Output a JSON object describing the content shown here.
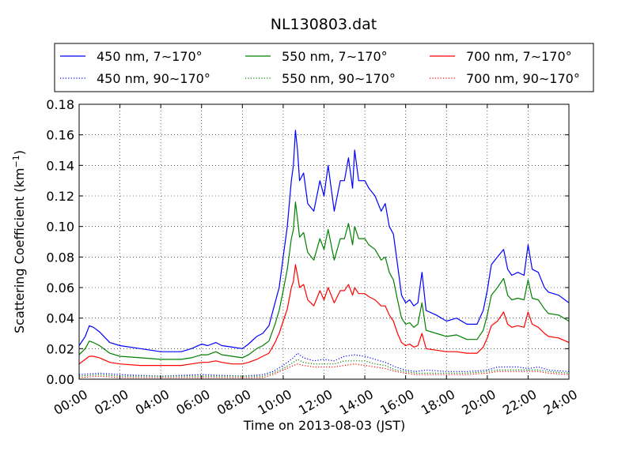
{
  "chart_data": {
    "type": "line",
    "title": "NL130803.dat",
    "xlabel": "Time on 2013-08-03 (JST)",
    "ylabel_main": "Scattering Coefficient (km",
    "ylabel_sup": "−1",
    "ylabel_end": ")",
    "xlim_hours": [
      0,
      24
    ],
    "ylim": [
      0,
      0.18
    ],
    "grid": true,
    "grid_style": "dotted",
    "legend_placement": "top",
    "x_ticks": [
      {
        "hour": 0,
        "label": "00:00"
      },
      {
        "hour": 2,
        "label": "02:00"
      },
      {
        "hour": 4,
        "label": "04:00"
      },
      {
        "hour": 6,
        "label": "06:00"
      },
      {
        "hour": 8,
        "label": "08:00"
      },
      {
        "hour": 10,
        "label": "10:00"
      },
      {
        "hour": 12,
        "label": "12:00"
      },
      {
        "hour": 14,
        "label": "14:00"
      },
      {
        "hour": 16,
        "label": "16:00"
      },
      {
        "hour": 18,
        "label": "18:00"
      },
      {
        "hour": 20,
        "label": "20:00"
      },
      {
        "hour": 22,
        "label": "22:00"
      },
      {
        "hour": 24,
        "label": "24:00"
      }
    ],
    "y_ticks": [
      {
        "value": 0.0,
        "label": "0.00"
      },
      {
        "value": 0.02,
        "label": "0.02"
      },
      {
        "value": 0.04,
        "label": "0.04"
      },
      {
        "value": 0.06,
        "label": "0.06"
      },
      {
        "value": 0.08,
        "label": "0.08"
      },
      {
        "value": 0.1,
        "label": "0.10"
      },
      {
        "value": 0.12,
        "label": "0.12"
      },
      {
        "value": 0.14,
        "label": "0.14"
      },
      {
        "value": 0.16,
        "label": "0.16"
      },
      {
        "value": 0.18,
        "label": "0.18"
      }
    ],
    "series": [
      {
        "name": "450 nm, 7∼170°",
        "color": "#0000ff",
        "style": "solid",
        "x": [
          0,
          0.3,
          0.5,
          0.7,
          1,
          1.5,
          2,
          3,
          4,
          5,
          5.5,
          6,
          6.3,
          6.7,
          7,
          7.5,
          8,
          8.3,
          8.7,
          9,
          9.3,
          9.6,
          9.8,
          10,
          10.2,
          10.4,
          10.5,
          10.6,
          10.7,
          10.8,
          11,
          11.2,
          11.5,
          11.8,
          12,
          12.2,
          12.5,
          12.8,
          13,
          13.2,
          13.4,
          13.5,
          13.7,
          14,
          14.2,
          14.5,
          14.8,
          15,
          15.2,
          15.4,
          15.6,
          15.8,
          16,
          16.2,
          16.4,
          16.6,
          16.8,
          17,
          17.5,
          18,
          18.5,
          19,
          19.5,
          19.8,
          20,
          20.2,
          20.5,
          20.8,
          21,
          21.2,
          21.5,
          21.8,
          22,
          22.2,
          22.5,
          22.8,
          23,
          23.5,
          24
        ],
        "values": [
          0.022,
          0.028,
          0.035,
          0.034,
          0.031,
          0.024,
          0.022,
          0.02,
          0.018,
          0.018,
          0.02,
          0.023,
          0.022,
          0.024,
          0.022,
          0.021,
          0.02,
          0.023,
          0.028,
          0.03,
          0.035,
          0.05,
          0.06,
          0.08,
          0.1,
          0.13,
          0.14,
          0.163,
          0.15,
          0.13,
          0.135,
          0.115,
          0.11,
          0.13,
          0.12,
          0.14,
          0.11,
          0.13,
          0.13,
          0.145,
          0.125,
          0.15,
          0.13,
          0.13,
          0.125,
          0.12,
          0.11,
          0.115,
          0.1,
          0.095,
          0.075,
          0.055,
          0.05,
          0.052,
          0.048,
          0.05,
          0.07,
          0.045,
          0.042,
          0.038,
          0.04,
          0.036,
          0.036,
          0.045,
          0.058,
          0.075,
          0.08,
          0.085,
          0.072,
          0.068,
          0.07,
          0.068,
          0.088,
          0.072,
          0.07,
          0.06,
          0.057,
          0.055,
          0.05
        ]
      },
      {
        "name": "550 nm, 7∼170°",
        "color": "#008000",
        "style": "solid",
        "x": [
          0,
          0.3,
          0.5,
          0.7,
          1,
          1.5,
          2,
          3,
          4,
          5,
          5.5,
          6,
          6.3,
          6.7,
          7,
          7.5,
          8,
          8.3,
          8.7,
          9,
          9.3,
          9.6,
          9.8,
          10,
          10.2,
          10.4,
          10.5,
          10.6,
          10.7,
          10.8,
          11,
          11.2,
          11.5,
          11.8,
          12,
          12.2,
          12.5,
          12.8,
          13,
          13.2,
          13.4,
          13.5,
          13.7,
          14,
          14.2,
          14.5,
          14.8,
          15,
          15.2,
          15.4,
          15.6,
          15.8,
          16,
          16.2,
          16.4,
          16.6,
          16.8,
          17,
          17.5,
          18,
          18.5,
          19,
          19.5,
          19.8,
          20,
          20.2,
          20.5,
          20.8,
          21,
          21.2,
          21.5,
          21.8,
          22,
          22.2,
          22.5,
          22.8,
          23,
          23.5,
          24
        ],
        "values": [
          0.016,
          0.02,
          0.025,
          0.024,
          0.022,
          0.017,
          0.015,
          0.014,
          0.013,
          0.013,
          0.014,
          0.016,
          0.016,
          0.018,
          0.016,
          0.015,
          0.014,
          0.016,
          0.02,
          0.022,
          0.025,
          0.036,
          0.045,
          0.058,
          0.072,
          0.092,
          0.098,
          0.116,
          0.105,
          0.093,
          0.096,
          0.083,
          0.078,
          0.092,
          0.085,
          0.098,
          0.078,
          0.092,
          0.092,
          0.102,
          0.088,
          0.1,
          0.092,
          0.092,
          0.088,
          0.085,
          0.078,
          0.08,
          0.07,
          0.065,
          0.052,
          0.04,
          0.036,
          0.037,
          0.034,
          0.036,
          0.05,
          0.032,
          0.03,
          0.028,
          0.029,
          0.026,
          0.026,
          0.032,
          0.042,
          0.055,
          0.06,
          0.066,
          0.055,
          0.052,
          0.053,
          0.052,
          0.065,
          0.053,
          0.052,
          0.046,
          0.043,
          0.042,
          0.038
        ]
      },
      {
        "name": "700 nm, 7∼170°",
        "color": "#ff0000",
        "style": "solid",
        "x": [
          0,
          0.3,
          0.5,
          0.7,
          1,
          1.5,
          2,
          3,
          4,
          5,
          5.5,
          6,
          6.3,
          6.7,
          7,
          7.5,
          8,
          8.3,
          8.7,
          9,
          9.3,
          9.6,
          9.8,
          10,
          10.2,
          10.4,
          10.5,
          10.6,
          10.7,
          10.8,
          11,
          11.2,
          11.5,
          11.8,
          12,
          12.2,
          12.5,
          12.8,
          13,
          13.2,
          13.4,
          13.5,
          13.7,
          14,
          14.2,
          14.5,
          14.8,
          15,
          15.2,
          15.4,
          15.6,
          15.8,
          16,
          16.2,
          16.4,
          16.6,
          16.8,
          17,
          17.5,
          18,
          18.5,
          19,
          19.5,
          19.8,
          20,
          20.2,
          20.5,
          20.8,
          21,
          21.2,
          21.5,
          21.8,
          22,
          22.2,
          22.5,
          22.8,
          23,
          23.5,
          24
        ],
        "values": [
          0.01,
          0.013,
          0.015,
          0.015,
          0.014,
          0.011,
          0.01,
          0.009,
          0.009,
          0.009,
          0.01,
          0.011,
          0.011,
          0.012,
          0.011,
          0.01,
          0.01,
          0.011,
          0.013,
          0.015,
          0.017,
          0.024,
          0.03,
          0.038,
          0.046,
          0.06,
          0.064,
          0.075,
          0.068,
          0.06,
          0.062,
          0.052,
          0.048,
          0.058,
          0.052,
          0.06,
          0.05,
          0.058,
          0.058,
          0.062,
          0.055,
          0.06,
          0.056,
          0.056,
          0.054,
          0.052,
          0.048,
          0.048,
          0.042,
          0.038,
          0.03,
          0.024,
          0.022,
          0.023,
          0.021,
          0.022,
          0.03,
          0.02,
          0.019,
          0.018,
          0.018,
          0.017,
          0.017,
          0.021,
          0.027,
          0.035,
          0.038,
          0.044,
          0.036,
          0.034,
          0.035,
          0.034,
          0.044,
          0.036,
          0.034,
          0.03,
          0.028,
          0.027,
          0.024
        ]
      },
      {
        "name": "450 nm, 90∼170°",
        "color": "#0000ff",
        "style": "dotted",
        "x": [
          0,
          1,
          2,
          4,
          6,
          8,
          9,
          9.5,
          10,
          10.5,
          10.7,
          11,
          11.5,
          12,
          12.5,
          13,
          13.5,
          14,
          14.5,
          15,
          15.5,
          16,
          16.5,
          17,
          18,
          19,
          20,
          20.5,
          21,
          21.5,
          22,
          22.5,
          23,
          24
        ],
        "values": [
          0.003,
          0.004,
          0.003,
          0.002,
          0.003,
          0.002,
          0.003,
          0.005,
          0.009,
          0.014,
          0.017,
          0.014,
          0.012,
          0.013,
          0.012,
          0.015,
          0.016,
          0.015,
          0.013,
          0.011,
          0.008,
          0.006,
          0.005,
          0.006,
          0.005,
          0.005,
          0.006,
          0.008,
          0.008,
          0.008,
          0.007,
          0.008,
          0.006,
          0.005
        ]
      },
      {
        "name": "550 nm, 90∼170°",
        "color": "#008000",
        "style": "dotted",
        "x": [
          0,
          1,
          2,
          4,
          6,
          8,
          9,
          9.5,
          10,
          10.5,
          10.7,
          11,
          11.5,
          12,
          12.5,
          13,
          13.5,
          14,
          14.5,
          15,
          15.5,
          16,
          16.5,
          17,
          18,
          19,
          20,
          20.5,
          21,
          21.5,
          22,
          22.5,
          23,
          24
        ],
        "values": [
          0.002,
          0.003,
          0.002,
          0.002,
          0.002,
          0.002,
          0.002,
          0.004,
          0.007,
          0.011,
          0.013,
          0.011,
          0.01,
          0.01,
          0.01,
          0.012,
          0.012,
          0.012,
          0.01,
          0.009,
          0.006,
          0.005,
          0.004,
          0.004,
          0.004,
          0.004,
          0.005,
          0.006,
          0.006,
          0.006,
          0.006,
          0.006,
          0.005,
          0.004
        ]
      },
      {
        "name": "700 nm, 90∼170°",
        "color": "#ff0000",
        "style": "dotted",
        "x": [
          0,
          1,
          2,
          4,
          6,
          8,
          9,
          9.5,
          10,
          10.5,
          10.7,
          11,
          11.5,
          12,
          12.5,
          13,
          13.5,
          14,
          14.5,
          15,
          15.5,
          16,
          16.5,
          17,
          18,
          19,
          20,
          20.5,
          21,
          21.5,
          22,
          22.5,
          23,
          24
        ],
        "values": [
          0.001,
          0.002,
          0.001,
          0.001,
          0.001,
          0.001,
          0.001,
          0.003,
          0.006,
          0.009,
          0.01,
          0.009,
          0.008,
          0.008,
          0.008,
          0.009,
          0.01,
          0.009,
          0.008,
          0.007,
          0.005,
          0.004,
          0.003,
          0.003,
          0.003,
          0.003,
          0.004,
          0.005,
          0.005,
          0.005,
          0.005,
          0.005,
          0.004,
          0.003
        ]
      }
    ],
    "legend_order": [
      0,
      1,
      2,
      3,
      4,
      5
    ]
  }
}
